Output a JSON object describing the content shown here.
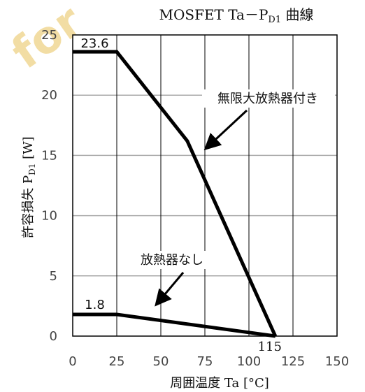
{
  "watermark": "for",
  "chart_data": {
    "type": "line",
    "title": {
      "main": "MOSFET Ta－P",
      "sub": "D1",
      "tail": " 曲線"
    },
    "xlabel": "周囲温度  Ta [°C]",
    "ylabel": {
      "main": "許容損失  P",
      "sub": "D1",
      "tail": " [W]"
    },
    "xlim": [
      0,
      150
    ],
    "ylim": [
      0,
      25
    ],
    "xticks": [
      "0",
      "25",
      "50",
      "75",
      "100",
      "125",
      "150"
    ],
    "yticks": [
      "0",
      "5",
      "10",
      "15",
      "20",
      "25"
    ],
    "grid": true,
    "series": [
      {
        "name": "無限大放熱器付き",
        "x": [
          0,
          25,
          65,
          115
        ],
        "y": [
          23.6,
          23.6,
          16.2,
          0
        ]
      },
      {
        "name": "放熱器なし",
        "x": [
          0,
          25,
          115
        ],
        "y": [
          1.8,
          1.8,
          0
        ]
      }
    ],
    "annotations": {
      "value_top": "23.6",
      "value_bottom": "1.8",
      "x_intercept": "115",
      "label_heatsink": "無限大放熱器付き",
      "label_no_heatsink": "放熱器なし"
    }
  }
}
